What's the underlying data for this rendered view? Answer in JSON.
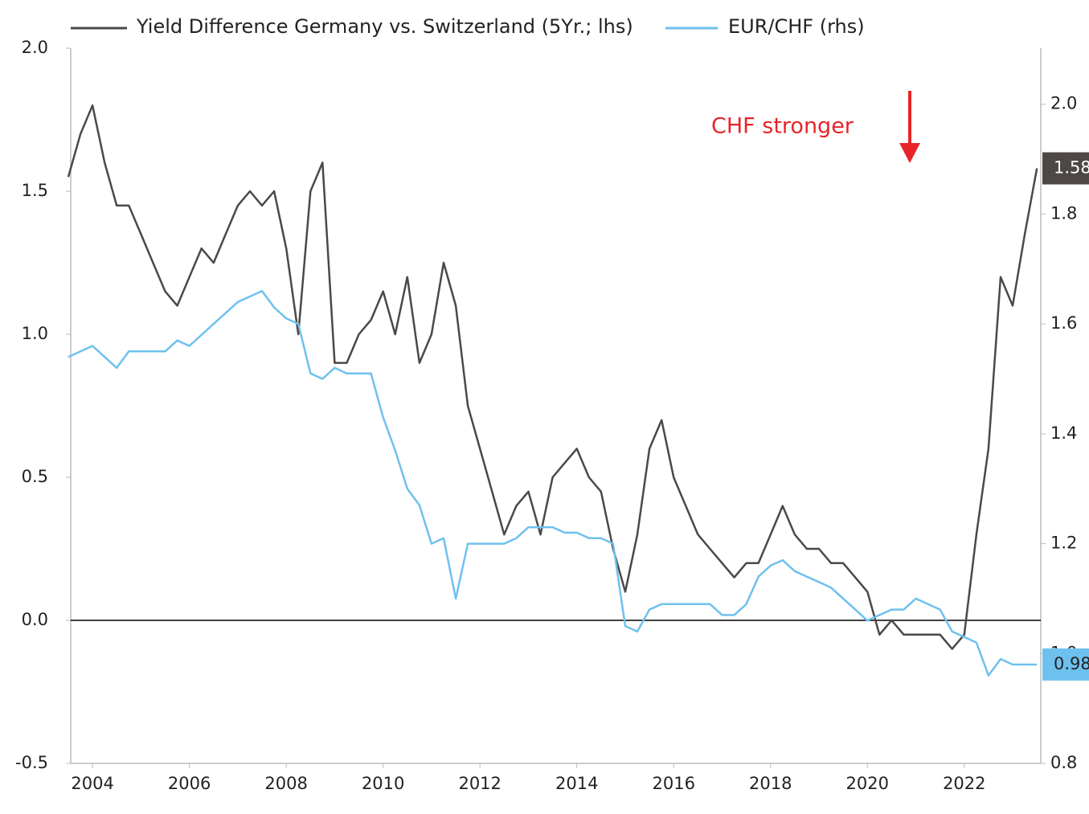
{
  "chart_data": {
    "type": "line",
    "x": [
      2003.5,
      2003.75,
      2004,
      2004.25,
      2004.5,
      2004.75,
      2005,
      2005.25,
      2005.5,
      2005.75,
      2006,
      2006.25,
      2006.5,
      2006.75,
      2007,
      2007.25,
      2007.5,
      2007.75,
      2008,
      2008.25,
      2008.5,
      2008.75,
      2009,
      2009.25,
      2009.5,
      2009.75,
      2010,
      2010.25,
      2010.5,
      2010.75,
      2011,
      2011.25,
      2011.5,
      2011.75,
      2012,
      2012.25,
      2012.5,
      2012.75,
      2013,
      2013.25,
      2013.5,
      2013.75,
      2014,
      2014.25,
      2014.5,
      2014.75,
      2015,
      2015.25,
      2015.5,
      2015.75,
      2016,
      2016.25,
      2016.5,
      2016.75,
      2017,
      2017.25,
      2017.5,
      2017.75,
      2018,
      2018.25,
      2018.5,
      2018.75,
      2019,
      2019.25,
      2019.5,
      2019.75,
      2020,
      2020.25,
      2020.5,
      2020.75,
      2021,
      2021.25,
      2021.5,
      2021.75,
      2022,
      2022.25,
      2022.5,
      2022.75,
      2023,
      2023.25,
      2023.5
    ],
    "series": [
      {
        "name": "Yield Difference Germany vs. Switzerland (5Yr.; lhs)",
        "color": "#4d4846",
        "axis": "y",
        "end_label": "1.58",
        "values": [
          1.55,
          1.7,
          1.8,
          1.6,
          1.45,
          1.45,
          1.35,
          1.25,
          1.15,
          1.1,
          1.2,
          1.3,
          1.25,
          1.35,
          1.45,
          1.5,
          1.45,
          1.5,
          1.3,
          1.0,
          1.5,
          1.6,
          0.9,
          0.9,
          1.0,
          1.05,
          1.15,
          1.0,
          1.2,
          0.9,
          1.0,
          1.25,
          1.1,
          0.75,
          0.6,
          0.45,
          0.3,
          0.4,
          0.45,
          0.3,
          0.5,
          0.55,
          0.6,
          0.5,
          0.45,
          0.25,
          0.1,
          0.3,
          0.6,
          0.7,
          0.5,
          0.4,
          0.3,
          0.25,
          0.2,
          0.15,
          0.2,
          0.2,
          0.3,
          0.4,
          0.3,
          0.25,
          0.25,
          0.2,
          0.2,
          0.15,
          0.1,
          -0.05,
          0.0,
          -0.05,
          -0.05,
          -0.05,
          -0.05,
          -0.1,
          -0.05,
          0.3,
          0.6,
          1.2,
          1.1,
          1.35,
          1.58
        ]
      },
      {
        "name": "EUR/CHF (rhs)",
        "color": "#6ec1ee",
        "axis": "y2",
        "end_label": "0.98",
        "values": [
          1.54,
          1.55,
          1.56,
          1.54,
          1.52,
          1.55,
          1.55,
          1.55,
          1.55,
          1.57,
          1.56,
          1.58,
          1.6,
          1.62,
          1.64,
          1.65,
          1.66,
          1.63,
          1.61,
          1.6,
          1.51,
          1.5,
          1.52,
          1.51,
          1.51,
          1.51,
          1.43,
          1.37,
          1.3,
          1.27,
          1.2,
          1.21,
          1.1,
          1.2,
          1.2,
          1.2,
          1.2,
          1.21,
          1.23,
          1.23,
          1.23,
          1.22,
          1.22,
          1.21,
          1.21,
          1.2,
          1.05,
          1.04,
          1.08,
          1.09,
          1.09,
          1.09,
          1.09,
          1.09,
          1.07,
          1.07,
          1.09,
          1.14,
          1.16,
          1.17,
          1.15,
          1.14,
          1.13,
          1.12,
          1.1,
          1.08,
          1.06,
          1.07,
          1.08,
          1.08,
          1.1,
          1.09,
          1.08,
          1.04,
          1.03,
          1.02,
          0.96,
          0.99,
          0.98,
          0.98,
          0.98
        ]
      }
    ],
    "annotation": "CHF stronger",
    "xlim": [
      2003.55,
      2023.58
    ],
    "xticks": [
      2004,
      2006,
      2008,
      2010,
      2012,
      2014,
      2016,
      2018,
      2020,
      2022
    ],
    "ylim": [
      -0.5,
      2.0
    ],
    "yticks": [
      {
        "value": -0.5,
        "label": "-0.5"
      },
      {
        "value": 0,
        "label": "0.0"
      },
      0.5,
      {
        "value": 1,
        "label": "1.0"
      },
      1.5,
      {
        "value": 2,
        "label": "2.0"
      }
    ],
    "y2lim": [
      0.8,
      2.102
    ],
    "y2ticks": [
      0.8,
      {
        "value": 1,
        "label": "1.0"
      },
      1.2,
      1.4,
      1.6,
      1.8,
      {
        "value": 2,
        "label": "2.0"
      }
    ]
  }
}
